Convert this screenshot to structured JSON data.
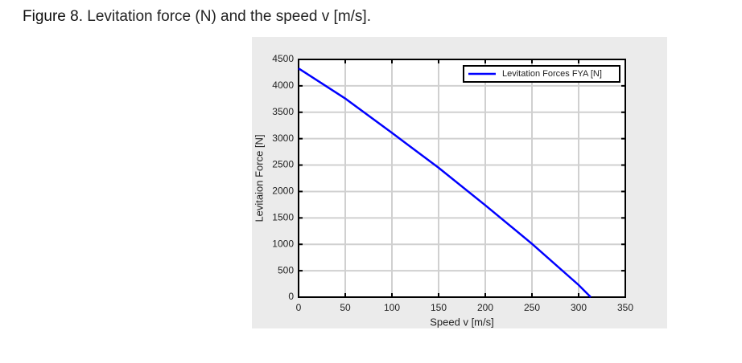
{
  "caption": {
    "label": "Figure 8.",
    "text": "Levitation force (N) and the speed v [m/s]."
  },
  "chart_data": {
    "type": "line",
    "xlabel": "Speed v [m/s]",
    "ylabel": "Levitaion Force [N]",
    "x": [
      0,
      50,
      100,
      150,
      200,
      250,
      300,
      313
    ],
    "series": [
      {
        "name": "Levitation Forces FYA [N]",
        "color": "#0000ff",
        "values": [
          4330,
          3760,
          3110,
          2450,
          1740,
          1010,
          230,
          0
        ]
      }
    ],
    "xlim": [
      0,
      350
    ],
    "xticks": [
      0,
      50,
      100,
      150,
      200,
      250,
      300,
      350
    ],
    "ylim": [
      0,
      4500
    ],
    "yticks": [
      0,
      500,
      1000,
      1500,
      2000,
      2500,
      3000,
      3500,
      4000,
      4500
    ],
    "grid": true,
    "legend": "upper right"
  }
}
